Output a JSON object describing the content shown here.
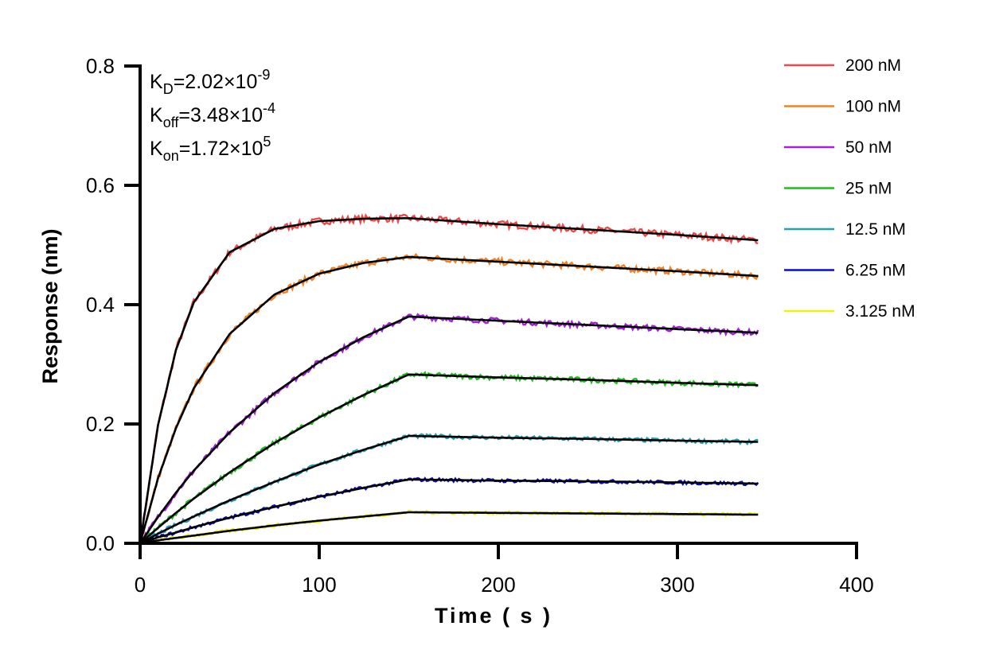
{
  "chart_data": {
    "type": "line",
    "xlabel": "Time ( s )",
    "ylabel": "Response (nm)",
    "xlim": [
      0,
      400
    ],
    "ylim": [
      0,
      0.8
    ],
    "xticks": [
      "0",
      "100",
      "200",
      "300",
      "400"
    ],
    "yticks": [
      "0.0",
      "0.2",
      "0.4",
      "0.6",
      "0.8"
    ],
    "grid": false,
    "legend_position": "top-right",
    "fit_color": "#000000",
    "annotations": [
      {
        "base": "K",
        "sub": "D",
        "value": "=2.02×10",
        "exp": "-9"
      },
      {
        "base": "K",
        "sub": "off",
        "value": "=3.48×10",
        "exp": "-4"
      },
      {
        "base": "K",
        "sub": "on",
        "value": "=1.72×10",
        "exp": "5"
      }
    ],
    "x": [
      0,
      10,
      20,
      30,
      50,
      75,
      100,
      125,
      150,
      200,
      250,
      300,
      345
    ],
    "series": [
      {
        "name": "200 nM",
        "color": "#f04848",
        "values": [
          0,
          0.198,
          0.324,
          0.404,
          0.488,
          0.527,
          0.54,
          0.544,
          0.545,
          0.535,
          0.526,
          0.517,
          0.508
        ]
      },
      {
        "name": "100 nM",
        "color": "#f08224",
        "values": [
          0,
          0.109,
          0.193,
          0.26,
          0.351,
          0.417,
          0.452,
          0.47,
          0.48,
          0.472,
          0.464,
          0.456,
          0.448
        ]
      },
      {
        "name": "50 nM",
        "color": "#a61ee0",
        "values": [
          0,
          0.044,
          0.085,
          0.122,
          0.186,
          0.252,
          0.304,
          0.346,
          0.38,
          0.373,
          0.366,
          0.359,
          0.353
        ]
      },
      {
        "name": "25 nM",
        "color": "#1ebe1e",
        "values": [
          0,
          0.026,
          0.051,
          0.075,
          0.119,
          0.168,
          0.211,
          0.249,
          0.283,
          0.278,
          0.274,
          0.269,
          0.265
        ]
      },
      {
        "name": "12.5 nM",
        "color": "#22a0b4",
        "values": [
          0,
          0.016,
          0.031,
          0.045,
          0.072,
          0.103,
          0.132,
          0.157,
          0.18,
          0.177,
          0.175,
          0.172,
          0.17
        ]
      },
      {
        "name": "6.25 nM",
        "color": "#0a0ad8",
        "values": [
          0,
          0.01,
          0.018,
          0.027,
          0.043,
          0.061,
          0.078,
          0.093,
          0.107,
          0.105,
          0.104,
          0.102,
          0.1
        ]
      },
      {
        "name": "3.125 nM",
        "color": "#f0f010",
        "values": [
          0,
          0.005,
          0.009,
          0.013,
          0.021,
          0.03,
          0.038,
          0.045,
          0.052,
          0.051,
          0.05,
          0.049,
          0.048
        ]
      }
    ]
  }
}
